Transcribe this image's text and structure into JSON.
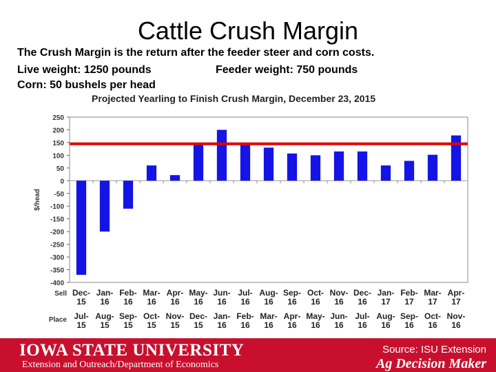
{
  "slide": {
    "title": "Cattle Crush Margin",
    "line1": "The Crush Margin is the return after the feeder steer and corn costs.",
    "line2a": "Live weight:  1250 pounds",
    "line2b": "Feeder weight:  750 pounds",
    "line3": "Corn:  50 bushels per head"
  },
  "chart_data": {
    "type": "bar",
    "title": "Projected Yearling to Finish Crush Margin, December 23, 2015",
    "ylabel": "$/head",
    "ylim": [
      -400,
      250
    ],
    "yticks": [
      250,
      200,
      150,
      100,
      50,
      0,
      -50,
      -100,
      -150,
      -200,
      -250,
      -300,
      -350,
      -400
    ],
    "reference_line": 145,
    "reference_color": "#e00000",
    "bar_color": "#1414e6",
    "row_labels": [
      "Sell",
      "Place"
    ],
    "sell_months": [
      [
        "Dec-",
        "15"
      ],
      [
        "Jan-",
        "16"
      ],
      [
        "Feb-",
        "16"
      ],
      [
        "Mar-",
        "16"
      ],
      [
        "Apr-",
        "16"
      ],
      [
        "May-",
        "16"
      ],
      [
        "Jun-",
        "16"
      ],
      [
        "Jul-",
        "16"
      ],
      [
        "Aug-",
        "16"
      ],
      [
        "Sep-",
        "16"
      ],
      [
        "Oct-",
        "16"
      ],
      [
        "Nov-",
        "16"
      ],
      [
        "Dec-",
        "16"
      ],
      [
        "Jan-",
        "17"
      ],
      [
        "Feb-",
        "17"
      ],
      [
        "Mar-",
        "17"
      ],
      [
        "Apr-",
        "17"
      ]
    ],
    "place_months": [
      [
        "Jul-",
        "15"
      ],
      [
        "Aug-",
        "15"
      ],
      [
        "Sep-",
        "15"
      ],
      [
        "Oct-",
        "15"
      ],
      [
        "Nov-",
        "15"
      ],
      [
        "Dec-",
        "15"
      ],
      [
        "Jan-",
        "16"
      ],
      [
        "Feb-",
        "16"
      ],
      [
        "Mar-",
        "16"
      ],
      [
        "Apr-",
        "16"
      ],
      [
        "May-",
        "16"
      ],
      [
        "Jun-",
        "16"
      ],
      [
        "Jul-",
        "16"
      ],
      [
        "Aug-",
        "16"
      ],
      [
        "Sep-",
        "16"
      ],
      [
        "Oct-",
        "16"
      ],
      [
        "Nov-",
        "16"
      ]
    ],
    "values": [
      -370,
      -200,
      -110,
      60,
      22,
      140,
      200,
      140,
      130,
      107,
      100,
      115,
      115,
      60,
      78,
      102,
      178
    ]
  },
  "footer": {
    "university": "IOWA STATE UNIVERSITY",
    "department": "Extension and Outreach/Department of Economics",
    "source": "Source: ISU Extension",
    "brand": "Ag Decision Maker",
    "color": "#c8102e"
  }
}
